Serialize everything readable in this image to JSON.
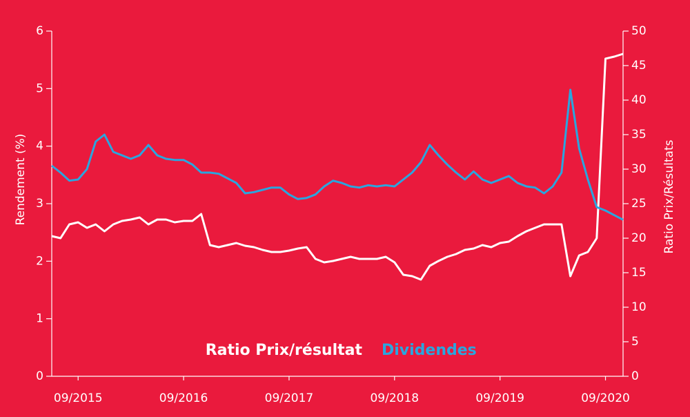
{
  "chart_data": {
    "type": "line",
    "x": [
      "2015-06",
      "2015-07",
      "2015-08",
      "2015-09",
      "2015-10",
      "2015-11",
      "2015-12",
      "2016-01",
      "2016-02",
      "2016-03",
      "2016-04",
      "2016-05",
      "2016-06",
      "2016-07",
      "2016-08",
      "2016-09",
      "2016-10",
      "2016-11",
      "2016-12",
      "2017-01",
      "2017-02",
      "2017-03",
      "2017-04",
      "2017-05",
      "2017-06",
      "2017-07",
      "2017-08",
      "2017-09",
      "2017-10",
      "2017-11",
      "2017-12",
      "2018-01",
      "2018-02",
      "2018-03",
      "2018-04",
      "2018-05",
      "2018-06",
      "2018-07",
      "2018-08",
      "2018-09",
      "2018-10",
      "2018-11",
      "2018-12",
      "2019-01",
      "2019-02",
      "2019-03",
      "2019-04",
      "2019-05",
      "2019-06",
      "2019-07",
      "2019-08",
      "2019-09",
      "2019-10",
      "2019-11",
      "2019-12",
      "2020-01",
      "2020-02",
      "2020-03",
      "2020-04",
      "2020-05",
      "2020-06",
      "2020-07",
      "2020-08",
      "2020-09",
      "2020-10",
      "2020-11"
    ],
    "xlim": [
      "2015-06",
      "2020-11"
    ],
    "xticks": [
      {
        "value": "2015-09",
        "label": "09/2015"
      },
      {
        "value": "2016-09",
        "label": "09/2016"
      },
      {
        "value": "2017-09",
        "label": "09/2017"
      },
      {
        "value": "2018-09",
        "label": "09/2018"
      },
      {
        "value": "2019-09",
        "label": "09/2019"
      },
      {
        "value": "2020-09",
        "label": "09/2020"
      }
    ],
    "ylabel": "Rendement (%)",
    "ylim": [
      0,
      6
    ],
    "yticks": [
      0,
      1,
      2,
      3,
      4,
      5,
      6
    ],
    "y2label": "Ratio Prix/Résultats",
    "y2lim": [
      0,
      50
    ],
    "y2ticks": [
      0,
      5,
      10,
      15,
      20,
      25,
      30,
      35,
      40,
      45,
      50
    ],
    "series": [
      {
        "name": "Ratio Prix/résultat",
        "color": "#ffffff",
        "axis": "y2",
        "values": [
          20.3,
          20.0,
          22.0,
          22.3,
          21.5,
          22,
          21,
          22,
          22.5,
          22.7,
          23,
          22,
          22.7,
          22.7,
          22.3,
          22.5,
          22.5,
          23.5,
          19,
          18.7,
          19,
          19.3,
          18.9,
          18.7,
          18.3,
          18,
          18,
          18.2,
          18.5,
          18.7,
          17,
          16.5,
          16.7,
          17,
          17.3,
          17,
          17,
          17,
          17.3,
          16.5,
          14.7,
          14.5,
          14,
          16,
          16.7,
          17.3,
          17.7,
          18.3,
          18.5,
          19,
          18.7,
          19.3,
          19.5,
          20.3,
          21,
          21.5,
          22,
          22,
          22,
          14.5,
          17.5,
          18,
          20,
          46,
          46.3,
          46.7
        ]
      },
      {
        "name": "Dividendes",
        "color": "#2aa6df",
        "values": [
          3.66,
          3.54,
          3.4,
          3.42,
          3.6,
          4.08,
          4.2,
          3.9,
          3.84,
          3.78,
          3.84,
          4.02,
          3.84,
          3.78,
          3.76,
          3.76,
          3.68,
          3.54,
          3.54,
          3.52,
          3.44,
          3.36,
          3.18,
          3.2,
          3.24,
          3.28,
          3.28,
          3.16,
          3.08,
          3.1,
          3.16,
          3.3,
          3.4,
          3.36,
          3.3,
          3.28,
          3.32,
          3.3,
          3.32,
          3.3,
          3.42,
          3.54,
          3.72,
          4.02,
          3.84,
          3.68,
          3.54,
          3.42,
          3.56,
          3.42,
          3.36,
          3.42,
          3.48,
          3.36,
          3.3,
          3.28,
          3.18,
          3.3,
          3.54,
          4.98,
          3.96,
          3.42,
          2.94,
          2.88,
          2.8,
          2.72
        ]
      }
    ]
  }
}
